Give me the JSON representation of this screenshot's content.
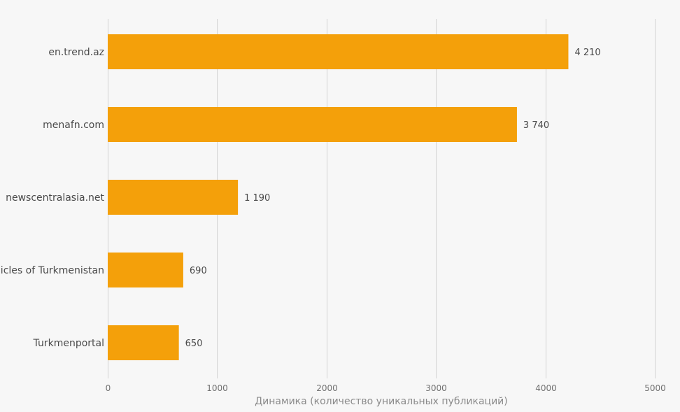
{
  "chart_data": {
    "type": "bar",
    "orientation": "horizontal",
    "categories": [
      "en.trend.az",
      "menafn.com",
      "newscentralasia.net",
      "Chronicles of Turkmenistan",
      "Turkmenportal"
    ],
    "values": [
      4210,
      3740,
      1190,
      690,
      650
    ],
    "value_labels": [
      "4 210",
      "3 740",
      "1 190",
      "690",
      "650"
    ],
    "title": "",
    "xlabel": "Динамика (количество уникальных публикаций)",
    "ylabel": "",
    "xlim": [
      0,
      5000
    ],
    "xticks": [
      0,
      1000,
      2000,
      3000,
      4000,
      5000
    ],
    "xtick_labels": [
      "0",
      "1000",
      "2000",
      "3000",
      "4000",
      "5000"
    ],
    "grid": true,
    "legend": "none",
    "bar_color": "#f4a00a",
    "background_color": "#f7f7f7"
  }
}
